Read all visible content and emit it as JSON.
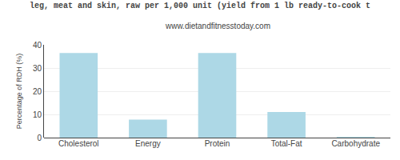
{
  "chart_data": {
    "type": "bar",
    "title": "leg, meat and skin, raw per 1,000 unit (yield from 1 lb ready-to-cook t",
    "subtitle": "www.dietandfitnesstoday.com",
    "ylabel": "Percentage of RDH (%)",
    "categories": [
      "Cholesterol",
      "Energy",
      "Protein",
      "Total-Fat",
      "Carbohydrate"
    ],
    "values": [
      36.5,
      7.8,
      36.5,
      11.0,
      0.3
    ],
    "color": "#add8e6",
    "ylim": [
      0,
      40
    ],
    "yticks": [
      0,
      10,
      20,
      30,
      40
    ],
    "grid": true
  }
}
